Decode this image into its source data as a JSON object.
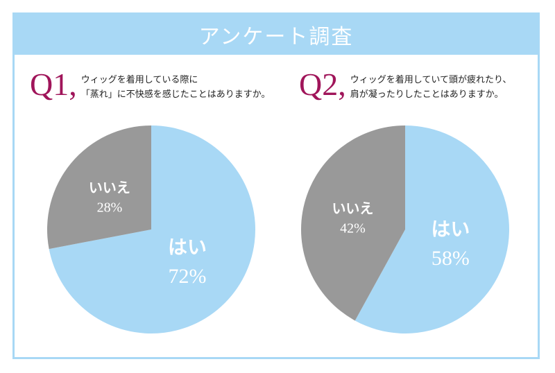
{
  "header": {
    "title": "アンケート調査"
  },
  "questions": [
    {
      "number": "Q1,",
      "text": [
        "ウィッグを着用している際に",
        "「蒸れ」に不快感を感じたことはありますか。"
      ]
    },
    {
      "number": "Q2,",
      "text": [
        "ウィッグを着用していて頭が疲れたり、",
        "肩が凝ったりしたことはありますか。"
      ]
    }
  ],
  "chart_data": [
    {
      "type": "pie",
      "title": "",
      "slices": [
        {
          "label": "はい",
          "value": 72,
          "display": "72%",
          "color": "#a8d8f5"
        },
        {
          "label": "いいえ",
          "value": 28,
          "display": "28%",
          "color": "#999999"
        }
      ]
    },
    {
      "type": "pie",
      "title": "",
      "slices": [
        {
          "label": "はい",
          "value": 58,
          "display": "58%",
          "color": "#a8d8f5"
        },
        {
          "label": "いいえ",
          "value": 42,
          "display": "42%",
          "color": "#999999"
        }
      ]
    }
  ]
}
